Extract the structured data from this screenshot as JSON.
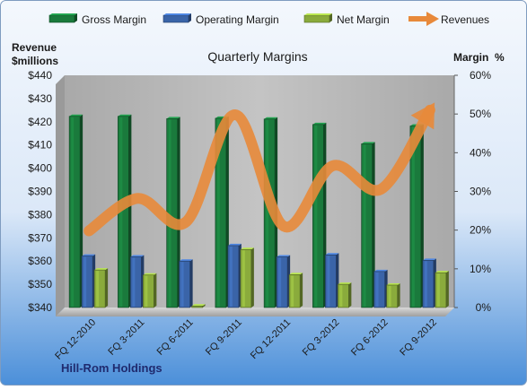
{
  "chart_data": {
    "type": "bar",
    "title": "Quarterly Margins",
    "left_axis_title": [
      "Revenue",
      "$millions"
    ],
    "right_axis_title": "Margin  %",
    "company": "Hill-Rom Holdings",
    "categories": [
      "FQ 12-2010",
      "FQ 3-2011",
      "FQ 6-2011",
      "FQ 9-2011",
      "FQ 12-2011",
      "FQ 3-2012",
      "FQ 6-2012",
      "FQ 9-2012"
    ],
    "left_ticks": [
      "$340",
      "$350",
      "$360",
      "$370",
      "$380",
      "$390",
      "$400",
      "$410",
      "$420",
      "$430",
      "$440"
    ],
    "right_ticks": [
      "0%",
      "10%",
      "20%",
      "30%",
      "40%",
      "50%",
      "60%"
    ],
    "ylim_left": [
      340,
      440
    ],
    "ylim_right": [
      0,
      60
    ],
    "legend_position": "top",
    "grid": false,
    "colors": {
      "gross": "#1a7a3c",
      "operating": "#3a64a8",
      "net": "#8aab3c",
      "revenues": "#e8893a",
      "bg_top": "#f2f7fd",
      "bg_bottom": "#4a8fd8"
    },
    "series": [
      {
        "name": "Gross Margin",
        "key": "gross",
        "kind": "bar",
        "axis": "right",
        "values": [
          49.4,
          49.4,
          48.8,
          48.9,
          48.7,
          47.3,
          42.3,
          46.9
        ]
      },
      {
        "name": "Operating Margin",
        "key": "operating",
        "kind": "bar",
        "axis": "right",
        "values": [
          13.3,
          13.1,
          12.0,
          16.0,
          13.1,
          13.6,
          9.3,
          12.2
        ]
      },
      {
        "name": "Net Margin",
        "key": "net",
        "kind": "bar",
        "axis": "right",
        "values": [
          9.7,
          8.4,
          0.4,
          15.0,
          8.5,
          6.0,
          5.8,
          9.0
        ]
      },
      {
        "name": "Revenues",
        "key": "revenues",
        "kind": "line",
        "axis": "left",
        "values": [
          373,
          387,
          377,
          423,
          375,
          401,
          391,
          425
        ]
      }
    ]
  }
}
